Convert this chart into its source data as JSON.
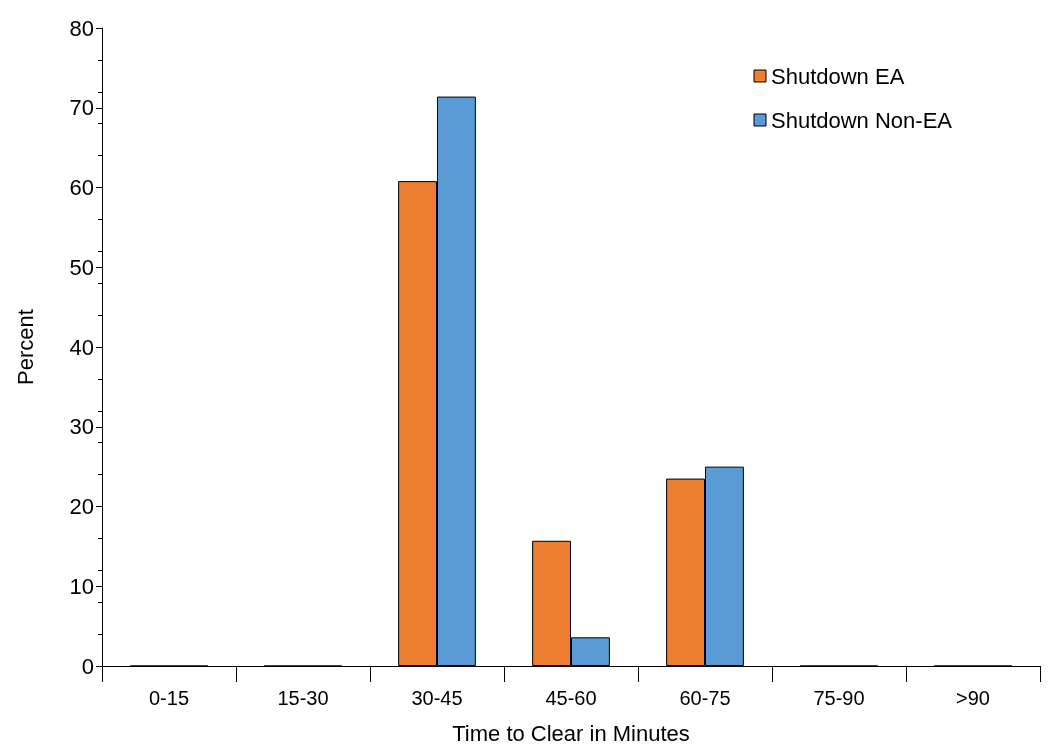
{
  "chart_data": {
    "type": "bar",
    "xlabel": "Time to Clear in Minutes",
    "ylabel": "Percent",
    "categories": [
      "0-15",
      "15-30",
      "30-45",
      "45-60",
      "60-75",
      "75-90",
      ">90"
    ],
    "series": [
      {
        "name": "Shutdown EA",
        "color": "#ed7d31",
        "values": [
          0,
          0,
          60.8,
          15.7,
          23.5,
          0,
          0
        ]
      },
      {
        "name": "Shutdown Non-EA",
        "color": "#5b9bd5",
        "values": [
          0,
          0,
          71.4,
          3.6,
          25,
          0,
          0
        ]
      }
    ],
    "ylim": [
      0,
      80
    ],
    "yticks": [
      0,
      10,
      20,
      30,
      40,
      50,
      60,
      70,
      80
    ],
    "grid": false,
    "legend": "top right"
  }
}
